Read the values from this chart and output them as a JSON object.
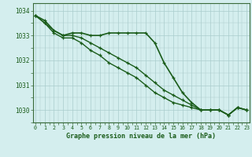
{
  "x": [
    0,
    1,
    2,
    3,
    4,
    5,
    6,
    7,
    8,
    9,
    10,
    11,
    12,
    13,
    14,
    15,
    16,
    17,
    18,
    19,
    20,
    21,
    22,
    23
  ],
  "series": [
    [
      1033.8,
      1033.6,
      1033.2,
      1033.0,
      1033.1,
      1033.1,
      1033.0,
      1033.0,
      1033.1,
      1033.1,
      1033.1,
      1033.1,
      1033.1,
      1032.7,
      1031.9,
      1031.3,
      1030.7,
      1030.3,
      1030.0,
      1030.0,
      1030.0,
      1029.8,
      1030.1,
      1030.0
    ],
    [
      1033.8,
      1033.5,
      1033.2,
      1033.0,
      1033.0,
      1032.9,
      1032.7,
      1032.5,
      1032.3,
      1032.1,
      1031.9,
      1031.7,
      1031.4,
      1031.1,
      1030.8,
      1030.6,
      1030.4,
      1030.2,
      1030.0,
      1030.0,
      1030.0,
      1029.8,
      1030.1,
      1030.0
    ],
    [
      1033.8,
      1033.5,
      1033.1,
      1032.9,
      1032.9,
      1032.7,
      1032.4,
      1032.2,
      1031.9,
      1031.7,
      1031.5,
      1031.3,
      1031.0,
      1030.7,
      1030.5,
      1030.3,
      1030.2,
      1030.1,
      1030.0,
      1030.0,
      1030.0,
      1029.8,
      1030.1,
      1030.0
    ]
  ],
  "ylim": [
    1029.5,
    1034.3
  ],
  "yticks": [
    1030,
    1031,
    1032,
    1033,
    1034
  ],
  "xticks": [
    0,
    1,
    2,
    3,
    4,
    5,
    6,
    7,
    8,
    9,
    10,
    11,
    12,
    13,
    14,
    15,
    16,
    17,
    18,
    19,
    20,
    21,
    22,
    23
  ],
  "line_color": "#1a5c1a",
  "marker_color": "#1a5c1a",
  "bg_color": "#d4eeee",
  "grid_color": "#aacccc",
  "xlabel": "Graphe pression niveau de la mer (hPa)",
  "xlabel_color": "#1a5c1a",
  "tick_color": "#1a5c1a",
  "axis_color": "#3a6b3a"
}
